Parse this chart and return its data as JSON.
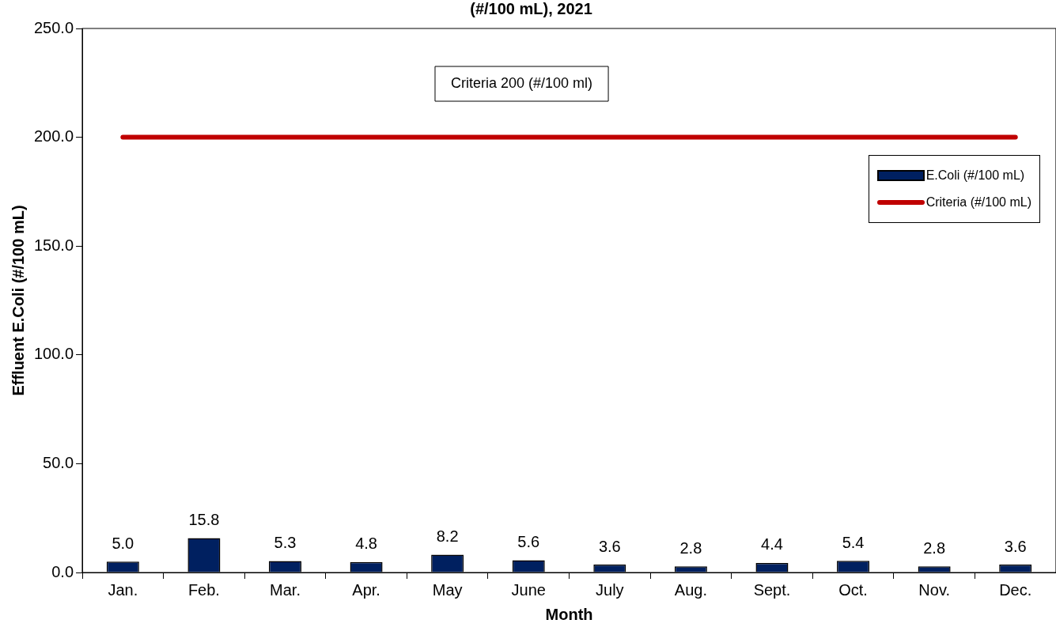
{
  "chart_data": {
    "type": "bar",
    "title": "(#/100 mL), 2021",
    "xlabel": "Month",
    "ylabel": "Effluent E.Coli (#/100 mL)",
    "categories": [
      "Jan.",
      "Feb.",
      "Mar.",
      "Apr.",
      "May",
      "June",
      "July",
      "Aug.",
      "Sept.",
      "Oct.",
      "Nov.",
      "Dec."
    ],
    "series": [
      {
        "name": "E.Coli (#/100 mL)",
        "color": "#002060",
        "values": [
          5.0,
          15.8,
          5.3,
          4.8,
          8.2,
          5.6,
          3.6,
          2.8,
          4.4,
          5.4,
          2.8,
          3.6
        ],
        "value_labels": [
          "5.0",
          "15.8",
          "5.3",
          "4.8",
          "8.2",
          "5.6",
          "3.6",
          "2.8",
          "4.4",
          "5.4",
          "2.8",
          "3.6"
        ]
      },
      {
        "name": "Criteria (#/100 mL)",
        "type": "line",
        "color": "#c00000",
        "values": [
          200,
          200,
          200,
          200,
          200,
          200,
          200,
          200,
          200,
          200,
          200,
          200
        ]
      }
    ],
    "ylim": [
      0,
      250
    ],
    "yticks": [
      {
        "value": 0,
        "label": "0.0"
      },
      {
        "value": 50,
        "label": "50.0"
      },
      {
        "value": 100,
        "label": "100.0"
      },
      {
        "value": 150,
        "label": "150.0"
      },
      {
        "value": 200,
        "label": "200.0"
      },
      {
        "value": 250,
        "label": "250.0"
      }
    ],
    "grid": false,
    "legend": "top right",
    "marker": "none",
    "annotations": [
      "Criteria 200 (#/100 ml)"
    ]
  }
}
